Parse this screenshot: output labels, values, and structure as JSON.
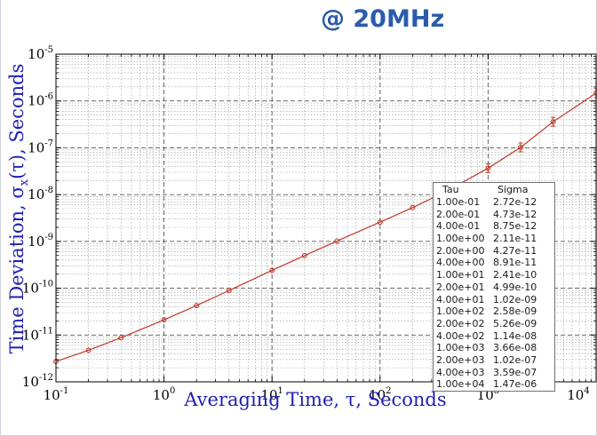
{
  "title": "@ 20MHz",
  "chart_data": {
    "type": "scatter",
    "xscale": "log",
    "yscale": "log",
    "xlim": [
      0.1,
      10000
    ],
    "ylim": [
      1e-12,
      1e-05
    ],
    "xlabel": "Averaging Time, τ, Seconds",
    "ylabel": "Time Deviation, σ_x(τ), Seconds",
    "grid": true,
    "x_ticks": [
      {
        "value": 0.1,
        "base": "10",
        "exp": "-1"
      },
      {
        "value": 1,
        "base": "10",
        "exp": "0"
      },
      {
        "value": 10,
        "base": "10",
        "exp": "1"
      },
      {
        "value": 100,
        "base": "10",
        "exp": "2"
      },
      {
        "value": 1000,
        "base": "10",
        "exp": "3"
      },
      {
        "value": 10000,
        "base": "10",
        "exp": "4"
      }
    ],
    "y_ticks": [
      {
        "value": 1e-12,
        "base": "10",
        "exp": "-12"
      },
      {
        "value": 1e-11,
        "base": "10",
        "exp": "-11"
      },
      {
        "value": 1e-10,
        "base": "10",
        "exp": "-10"
      },
      {
        "value": 1e-09,
        "base": "10",
        "exp": "-9"
      },
      {
        "value": 1e-08,
        "base": "10",
        "exp": "-8"
      },
      {
        "value": 1e-07,
        "base": "10",
        "exp": "-7"
      },
      {
        "value": 1e-06,
        "base": "10",
        "exp": "-6"
      },
      {
        "value": 1e-05,
        "base": "10",
        "exp": "-5"
      }
    ],
    "series_color": "#c0392b",
    "table": {
      "headers": [
        "Tau",
        "Sigma"
      ],
      "rows": [
        [
          "1.00e-01",
          "2.72e-12"
        ],
        [
          "2.00e-01",
          "4.73e-12"
        ],
        [
          "4.00e-01",
          "8.75e-12"
        ],
        [
          "1.00e+00",
          "2.11e-11"
        ],
        [
          "2.00e+00",
          "4.27e-11"
        ],
        [
          "4.00e+00",
          "8.91e-11"
        ],
        [
          "1.00e+01",
          "2.41e-10"
        ],
        [
          "2.00e+01",
          "4.99e-10"
        ],
        [
          "4.00e+01",
          "1.02e-09"
        ],
        [
          "1.00e+02",
          "2.58e-09"
        ],
        [
          "2.00e+02",
          "5.26e-09"
        ],
        [
          "4.00e+02",
          "1.14e-08"
        ],
        [
          "1.00e+03",
          "3.66e-08"
        ],
        [
          "2.00e+03",
          "1.02e-07"
        ],
        [
          "4.00e+03",
          "3.59e-07"
        ],
        [
          "1.00e+04",
          "1.47e-06"
        ]
      ]
    }
  }
}
